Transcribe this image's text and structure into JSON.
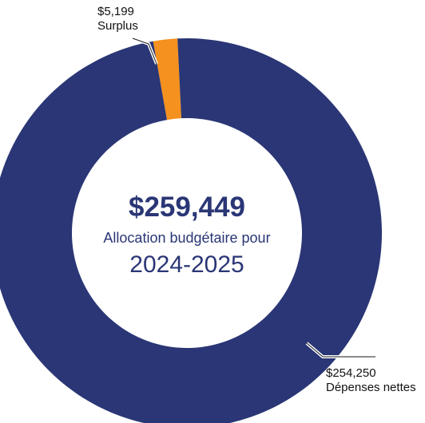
{
  "chart_data": {
    "type": "pie",
    "categories": [
      "Surplus",
      "Dépenses nettes"
    ],
    "values": [
      5199,
      254250
    ],
    "value_labels": [
      "$5,199",
      "$254,250"
    ],
    "colors": [
      "#f5911e",
      "#2a3675"
    ],
    "center_total": "$259,449",
    "center_caption": "Allocation budgétaire pour",
    "center_year": "2024-2025"
  }
}
